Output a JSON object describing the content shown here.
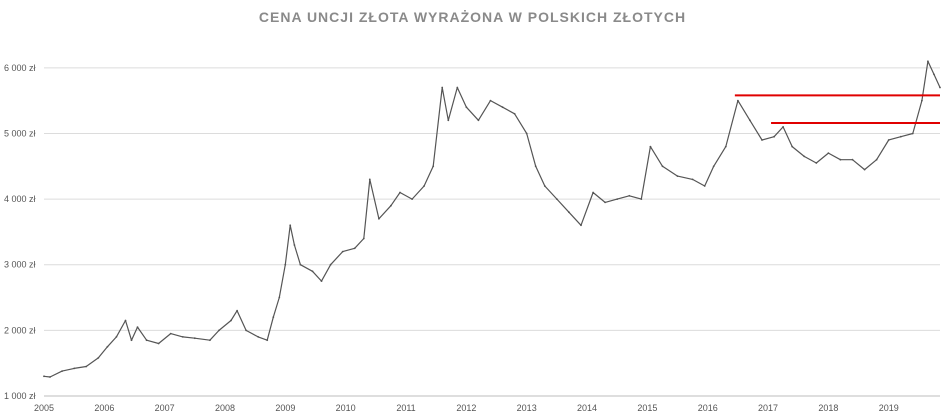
{
  "chart_data": {
    "type": "line",
    "title": "CENA UNCJI ZŁOTA WYRAŻONA W POLSKICH ZŁOTYCH",
    "xlabel": "",
    "ylabel": "",
    "xlim": [
      2005.0,
      2019.85
    ],
    "ylim": [
      1000,
      6500
    ],
    "grid": "horizontal",
    "y_ticks": [
      {
        "value": 1000,
        "label": "1 000 zł"
      },
      {
        "value": 2000,
        "label": "2 000 zł"
      },
      {
        "value": 3000,
        "label": "3 000 zł"
      },
      {
        "value": 4000,
        "label": "4 000 zł"
      },
      {
        "value": 5000,
        "label": "5 000 zł"
      },
      {
        "value": 6000,
        "label": "6 000 zł"
      }
    ],
    "x_ticks": [
      {
        "value": 2005,
        "label": "2005"
      },
      {
        "value": 2006,
        "label": "2006"
      },
      {
        "value": 2007,
        "label": "2007"
      },
      {
        "value": 2008,
        "label": "2008"
      },
      {
        "value": 2009,
        "label": "2009"
      },
      {
        "value": 2010,
        "label": "2010"
      },
      {
        "value": 2011,
        "label": "2011"
      },
      {
        "value": 2012,
        "label": "2012"
      },
      {
        "value": 2013,
        "label": "2013"
      },
      {
        "value": 2014,
        "label": "2014"
      },
      {
        "value": 2015,
        "label": "2015"
      },
      {
        "value": 2016,
        "label": "2016"
      },
      {
        "value": 2017,
        "label": "2017"
      },
      {
        "value": 2018,
        "label": "2018"
      },
      {
        "value": 2019,
        "label": "2019"
      }
    ],
    "series": [
      {
        "color": "#555555",
        "points": [
          [
            2005.0,
            1300
          ],
          [
            2005.1,
            1290
          ],
          [
            2005.3,
            1380
          ],
          [
            2005.5,
            1420
          ],
          [
            2005.7,
            1450
          ],
          [
            2005.9,
            1580
          ],
          [
            2006.05,
            1750
          ],
          [
            2006.2,
            1900
          ],
          [
            2006.35,
            2150
          ],
          [
            2006.45,
            1850
          ],
          [
            2006.55,
            2050
          ],
          [
            2006.7,
            1850
          ],
          [
            2006.9,
            1800
          ],
          [
            2007.1,
            1950
          ],
          [
            2007.3,
            1900
          ],
          [
            2007.5,
            1880
          ],
          [
            2007.75,
            1850
          ],
          [
            2007.9,
            2000
          ],
          [
            2008.1,
            2150
          ],
          [
            2008.2,
            2300
          ],
          [
            2008.35,
            2000
          ],
          [
            2008.55,
            1900
          ],
          [
            2008.7,
            1850
          ],
          [
            2008.8,
            2200
          ],
          [
            2008.9,
            2500
          ],
          [
            2009.0,
            3000
          ],
          [
            2009.08,
            3600
          ],
          [
            2009.15,
            3300
          ],
          [
            2009.25,
            3000
          ],
          [
            2009.45,
            2900
          ],
          [
            2009.6,
            2750
          ],
          [
            2009.75,
            3000
          ],
          [
            2009.95,
            3200
          ],
          [
            2010.15,
            3250
          ],
          [
            2010.3,
            3400
          ],
          [
            2010.4,
            4300
          ],
          [
            2010.55,
            3700
          ],
          [
            2010.75,
            3900
          ],
          [
            2010.9,
            4100
          ],
          [
            2011.1,
            4000
          ],
          [
            2011.3,
            4200
          ],
          [
            2011.45,
            4500
          ],
          [
            2011.6,
            5700
          ],
          [
            2011.7,
            5200
          ],
          [
            2011.85,
            5700
          ],
          [
            2012.0,
            5400
          ],
          [
            2012.2,
            5200
          ],
          [
            2012.4,
            5500
          ],
          [
            2012.6,
            5400
          ],
          [
            2012.8,
            5300
          ],
          [
            2013.0,
            5000
          ],
          [
            2013.15,
            4500
          ],
          [
            2013.3,
            4200
          ],
          [
            2013.5,
            4000
          ],
          [
            2013.7,
            3800
          ],
          [
            2013.9,
            3600
          ],
          [
            2014.1,
            4100
          ],
          [
            2014.3,
            3950
          ],
          [
            2014.5,
            4000
          ],
          [
            2014.7,
            4050
          ],
          [
            2014.9,
            4000
          ],
          [
            2015.05,
            4800
          ],
          [
            2015.25,
            4500
          ],
          [
            2015.5,
            4350
          ],
          [
            2015.75,
            4300
          ],
          [
            2015.95,
            4200
          ],
          [
            2016.1,
            4500
          ],
          [
            2016.3,
            4800
          ],
          [
            2016.5,
            5500
          ],
          [
            2016.7,
            5200
          ],
          [
            2016.9,
            4900
          ],
          [
            2017.1,
            4950
          ],
          [
            2017.25,
            5100
          ],
          [
            2017.4,
            4800
          ],
          [
            2017.6,
            4650
          ],
          [
            2017.8,
            4550
          ],
          [
            2018.0,
            4700
          ],
          [
            2018.2,
            4600
          ],
          [
            2018.4,
            4600
          ],
          [
            2018.6,
            4450
          ],
          [
            2018.8,
            4600
          ],
          [
            2019.0,
            4900
          ],
          [
            2019.2,
            4950
          ],
          [
            2019.4,
            5000
          ],
          [
            2019.55,
            5500
          ],
          [
            2019.65,
            6100
          ],
          [
            2019.75,
            5900
          ],
          [
            2019.85,
            5700
          ]
        ]
      }
    ],
    "resistance_lines": [
      {
        "value": 5580,
        "from": 2016.45,
        "to": 2019.85,
        "color": "#e00000"
      },
      {
        "value": 5160,
        "from": 2017.05,
        "to": 2019.85,
        "color": "#e00000"
      }
    ]
  }
}
